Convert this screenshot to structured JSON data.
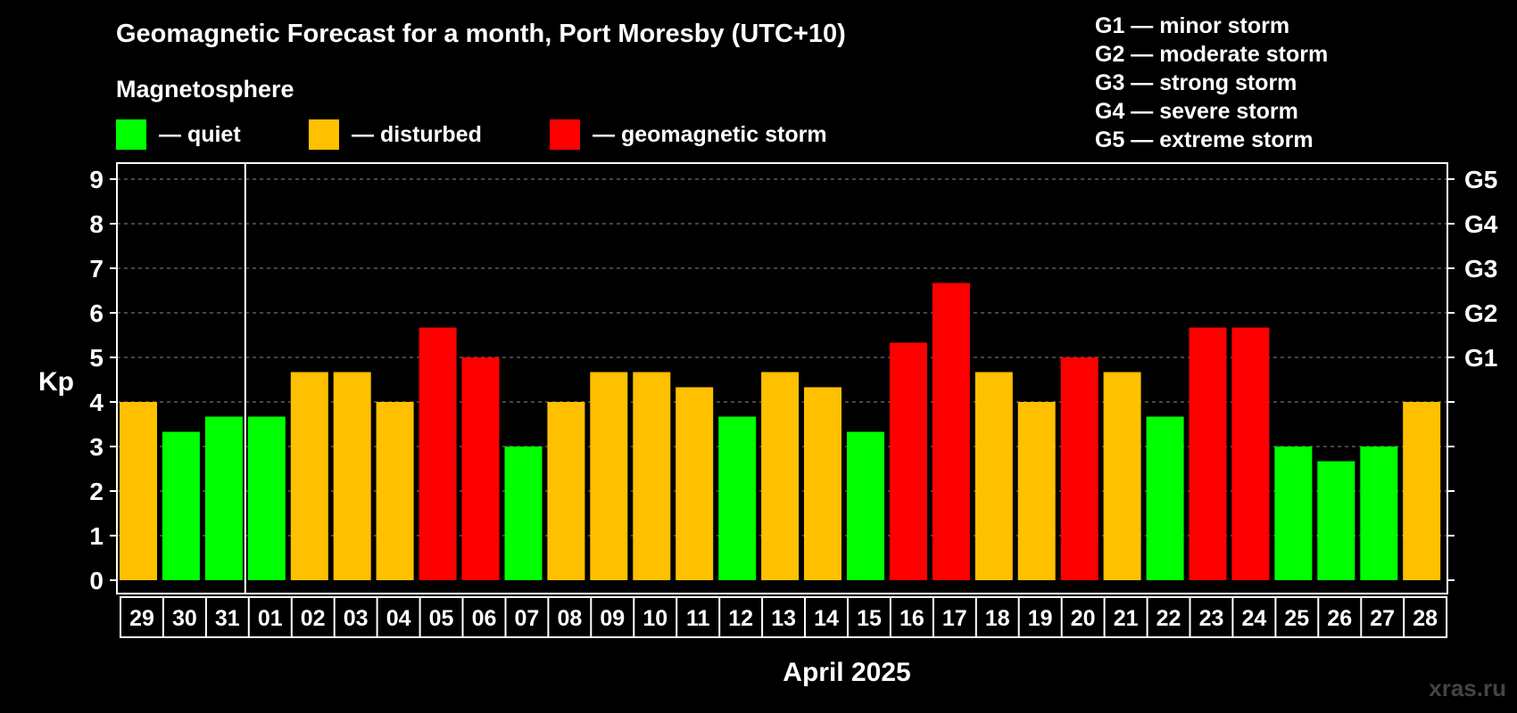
{
  "title": "Geomagnetic Forecast for a month, Port Moresby (UTC+10)",
  "subtitle": "Magnetosphere",
  "legend": [
    {
      "label": "— quiet",
      "color": "#00ff00"
    },
    {
      "label": "— disturbed",
      "color": "#ffc000"
    },
    {
      "label": "— geomagnetic storm",
      "color": "#ff0000"
    }
  ],
  "g_scale": [
    "G1 — minor storm",
    "G2 — moderate storm",
    "G3 — strong storm",
    "G4 — severe storm",
    "G5 — extreme storm"
  ],
  "watermark": "xras.ru",
  "chart_data": {
    "type": "bar",
    "ylabel": "Kp",
    "xlabel": "April 2025",
    "ylim": [
      0,
      9
    ],
    "yticks": [
      "0",
      "1",
      "2",
      "3",
      "4",
      "5",
      "6",
      "7",
      "8",
      "9"
    ],
    "right_ticks": [
      {
        "value": 5,
        "label": "G1"
      },
      {
        "value": 6,
        "label": "G2"
      },
      {
        "value": 7,
        "label": "G3"
      },
      {
        "value": 8,
        "label": "G4"
      },
      {
        "value": 9,
        "label": "G5"
      }
    ],
    "grid": true,
    "month_divider_after_index": 2,
    "categories": [
      "29",
      "30",
      "31",
      "01",
      "02",
      "03",
      "04",
      "05",
      "06",
      "07",
      "08",
      "09",
      "10",
      "11",
      "12",
      "13",
      "14",
      "15",
      "16",
      "17",
      "18",
      "19",
      "20",
      "21",
      "22",
      "23",
      "24",
      "25",
      "26",
      "27",
      "28"
    ],
    "values": [
      4,
      3.33,
      3.67,
      3.67,
      4.67,
      4.67,
      4,
      5.67,
      5,
      3,
      4,
      4.67,
      4.67,
      4.33,
      3.67,
      4.67,
      4.33,
      3.33,
      5.33,
      6.67,
      4.67,
      4,
      5,
      4.67,
      3.67,
      5.67,
      5.67,
      3,
      2.67,
      3,
      4
    ],
    "level_colors": {
      "quiet": "#00ff00",
      "disturbed": "#ffc000",
      "storm": "#ff0000"
    }
  }
}
